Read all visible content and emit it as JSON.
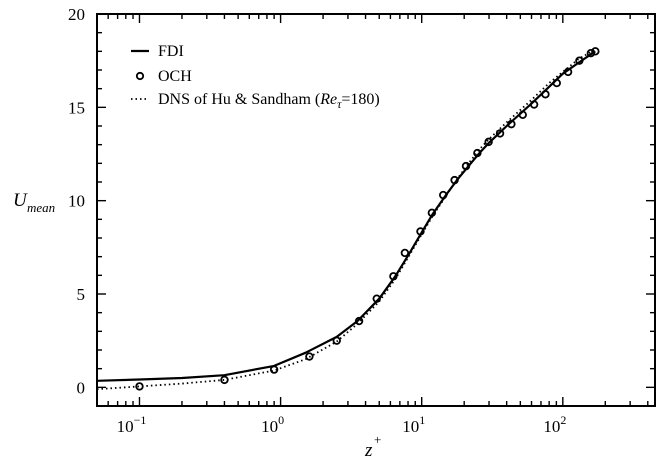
{
  "chart_data": {
    "type": "line",
    "xlabel": "z",
    "xlabel_sup": "+",
    "ylabel": "U",
    "ylabel_sub": "mean",
    "x_scale": "log",
    "xlim": [
      0.05,
      450
    ],
    "ylim": [
      -1,
      20
    ],
    "x_ticks": [
      {
        "base": "10",
        "exp": "−1"
      },
      {
        "base": "10",
        "exp": "0"
      },
      {
        "base": "10",
        "exp": "1"
      },
      {
        "base": "10",
        "exp": "2"
      }
    ],
    "y_ticks": [
      "0",
      "5",
      "10",
      "15",
      "20"
    ],
    "legend_position": "top-left",
    "series": [
      {
        "name": "FDI",
        "style": "solid",
        "x": [
          0.05,
          0.1,
          0.2,
          0.4,
          0.9,
          1.5,
          2.5,
          3.5,
          5,
          6.5,
          8,
          10,
          12,
          15,
          18,
          22,
          26,
          30,
          40,
          60,
          80,
          100,
          130,
          170
        ],
        "y": [
          0.35,
          0.42,
          0.5,
          0.65,
          1.15,
          1.85,
          2.7,
          3.55,
          4.75,
          5.95,
          7.05,
          8.3,
          9.3,
          10.35,
          11.15,
          11.95,
          12.6,
          13.1,
          14.0,
          15.2,
          16.1,
          16.8,
          17.4,
          18.0
        ]
      },
      {
        "name": "OCH",
        "style": "markers",
        "x": [
          0.1,
          0.4,
          0.9,
          1.6,
          2.5,
          3.6,
          4.8,
          6.3,
          7.6,
          9.8,
          11.8,
          14.2,
          17.1,
          20.6,
          24.8,
          29.8,
          35.9,
          43.2,
          52,
          62.6,
          75.3,
          90.6,
          109,
          131,
          158,
          170
        ],
        "y": [
          0.05,
          0.4,
          0.95,
          1.65,
          2.5,
          3.55,
          4.75,
          5.95,
          7.2,
          8.35,
          9.35,
          10.3,
          11.1,
          11.85,
          12.55,
          13.15,
          13.6,
          14.1,
          14.6,
          15.15,
          15.7,
          16.3,
          16.9,
          17.5,
          17.9,
          18.0
        ]
      },
      {
        "name": "DNS of Hu & Sandham (Reτ=180)",
        "style": "dotted",
        "x": [
          0.05,
          0.1,
          0.2,
          0.4,
          0.9,
          1.5,
          2.5,
          3.5,
          5,
          6.5,
          8,
          10,
          12,
          15,
          18,
          22,
          26,
          30,
          40,
          60,
          80,
          100,
          130,
          170
        ],
        "y": [
          -0.1,
          0.05,
          0.2,
          0.4,
          0.9,
          1.5,
          2.45,
          3.4,
          4.6,
          5.8,
          6.95,
          8.2,
          9.2,
          10.3,
          11.2,
          12.1,
          12.8,
          13.3,
          14.2,
          15.4,
          16.3,
          16.9,
          17.6,
          18.1
        ]
      }
    ],
    "legend": {
      "fdi": "FDI",
      "och": "OCH",
      "dns_prefix": "DNS of Hu & Sandham (",
      "dns_re": "Re",
      "dns_tau": "τ",
      "dns_suffix": "=180)"
    }
  }
}
